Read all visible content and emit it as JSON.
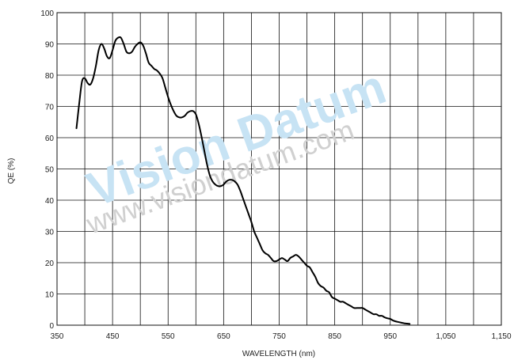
{
  "chart_data": {
    "type": "line",
    "title": "",
    "xlabel": "WAVELENGTH (nm)",
    "ylabel": "QE (%)",
    "xlim": [
      350,
      1150
    ],
    "ylim": [
      0,
      100
    ],
    "grid": true,
    "legend": "none",
    "x_ticks": [
      {
        "value": 350,
        "label": "350"
      },
      {
        "value": 450,
        "label": "450"
      },
      {
        "value": 550,
        "label": "550"
      },
      {
        "value": 650,
        "label": "650"
      },
      {
        "value": 750,
        "label": "750"
      },
      {
        "value": 850,
        "label": "850"
      },
      {
        "value": 950,
        "label": "950"
      },
      {
        "value": 1050,
        "label": "1,050"
      },
      {
        "value": 1150,
        "label": "1,150"
      }
    ],
    "x_gridlines": [
      350,
      400,
      450,
      500,
      550,
      600,
      650,
      700,
      750,
      800,
      850,
      900,
      950,
      1000,
      1050,
      1100,
      1150
    ],
    "y_ticks": [
      {
        "value": 0,
        "label": "0"
      },
      {
        "value": 10,
        "label": "10"
      },
      {
        "value": 20,
        "label": "20"
      },
      {
        "value": 30,
        "label": "30"
      },
      {
        "value": 40,
        "label": "40"
      },
      {
        "value": 50,
        "label": "50"
      },
      {
        "value": 60,
        "label": "60"
      },
      {
        "value": 70,
        "label": "70"
      },
      {
        "value": 80,
        "label": "80"
      },
      {
        "value": 90,
        "label": "90"
      },
      {
        "value": 100,
        "label": "100"
      }
    ],
    "series": [
      {
        "line_color": "#000000",
        "points": [
          [
            385,
            63
          ],
          [
            390,
            71
          ],
          [
            395,
            78
          ],
          [
            400,
            79
          ],
          [
            405,
            77.5
          ],
          [
            410,
            77
          ],
          [
            415,
            79
          ],
          [
            420,
            83
          ],
          [
            425,
            88
          ],
          [
            430,
            90
          ],
          [
            435,
            88.5
          ],
          [
            440,
            86
          ],
          [
            445,
            85.5
          ],
          [
            450,
            88
          ],
          [
            455,
            91
          ],
          [
            460,
            92
          ],
          [
            465,
            92
          ],
          [
            470,
            90
          ],
          [
            475,
            87.5
          ],
          [
            480,
            87
          ],
          [
            485,
            87.5
          ],
          [
            490,
            89
          ],
          [
            495,
            90
          ],
          [
            500,
            90.5
          ],
          [
            505,
            89.5
          ],
          [
            510,
            87
          ],
          [
            515,
            84
          ],
          [
            520,
            83
          ],
          [
            525,
            82
          ],
          [
            530,
            81.5
          ],
          [
            535,
            80.5
          ],
          [
            540,
            79
          ],
          [
            545,
            76
          ],
          [
            550,
            73
          ],
          [
            555,
            70.5
          ],
          [
            560,
            68.5
          ],
          [
            565,
            67
          ],
          [
            570,
            66.5
          ],
          [
            575,
            66.5
          ],
          [
            580,
            67
          ],
          [
            585,
            68
          ],
          [
            590,
            68.5
          ],
          [
            595,
            68.5
          ],
          [
            600,
            67.5
          ],
          [
            605,
            64.5
          ],
          [
            610,
            60.5
          ],
          [
            615,
            56
          ],
          [
            620,
            51.5
          ],
          [
            625,
            48
          ],
          [
            630,
            46
          ],
          [
            635,
            45
          ],
          [
            640,
            44.5
          ],
          [
            645,
            44.5
          ],
          [
            650,
            45
          ],
          [
            655,
            46
          ],
          [
            660,
            46.5
          ],
          [
            665,
            46.5
          ],
          [
            670,
            46
          ],
          [
            675,
            45
          ],
          [
            680,
            43
          ],
          [
            685,
            40.5
          ],
          [
            690,
            38
          ],
          [
            695,
            35.5
          ],
          [
            700,
            33
          ],
          [
            705,
            30
          ],
          [
            710,
            28
          ],
          [
            715,
            26
          ],
          [
            720,
            24
          ],
          [
            725,
            23
          ],
          [
            730,
            22.5
          ],
          [
            735,
            21.5
          ],
          [
            740,
            20.5
          ],
          [
            745,
            20.5
          ],
          [
            750,
            21
          ],
          [
            755,
            21.5
          ],
          [
            760,
            21
          ],
          [
            765,
            20.5
          ],
          [
            770,
            21.5
          ],
          [
            775,
            22
          ],
          [
            780,
            22.5
          ],
          [
            785,
            22
          ],
          [
            790,
            21
          ],
          [
            795,
            20
          ],
          [
            800,
            19
          ],
          [
            805,
            18.5
          ],
          [
            810,
            17
          ],
          [
            815,
            15.5
          ],
          [
            820,
            13.5
          ],
          [
            825,
            12.5
          ],
          [
            830,
            12
          ],
          [
            835,
            11
          ],
          [
            840,
            10.5
          ],
          [
            845,
            9
          ],
          [
            850,
            8.5
          ],
          [
            855,
            8
          ],
          [
            860,
            7.5
          ],
          [
            865,
            7.5
          ],
          [
            870,
            7
          ],
          [
            875,
            6.5
          ],
          [
            880,
            6
          ],
          [
            885,
            5.5
          ],
          [
            890,
            5.5
          ],
          [
            895,
            5.5
          ],
          [
            900,
            5.5
          ],
          [
            905,
            5
          ],
          [
            910,
            4.5
          ],
          [
            915,
            4
          ],
          [
            920,
            3.5
          ],
          [
            925,
            3.5
          ],
          [
            930,
            3
          ],
          [
            935,
            3
          ],
          [
            940,
            2.5
          ],
          [
            945,
            2.2
          ],
          [
            950,
            2
          ],
          [
            955,
            1.5
          ],
          [
            960,
            1.2
          ],
          [
            965,
            1
          ],
          [
            970,
            0.8
          ],
          [
            975,
            0.6
          ],
          [
            980,
            0.5
          ],
          [
            985,
            0.4
          ]
        ]
      }
    ]
  },
  "watermark": {
    "brand": "Vision Datum",
    "url": "www.visiondatum.com",
    "brand_color": "#c7e3f4",
    "url_color": "#d0d0d0"
  }
}
